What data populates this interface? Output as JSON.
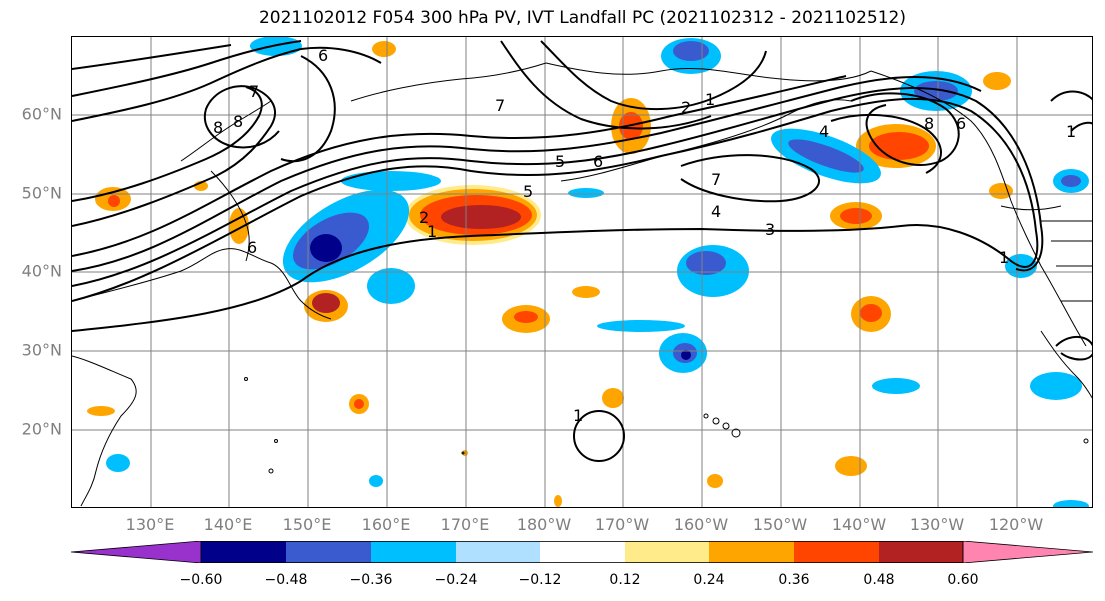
{
  "title": "2021102012 F054 300 hPa PV, IVT Landfall PC (2021102312 - 2021102512)",
  "map": {
    "lat_labels": [
      "60°N",
      "50°N",
      "40°N",
      "30°N",
      "20°N"
    ],
    "lon_labels": [
      "130°E",
      "140°E",
      "150°E",
      "160°E",
      "170°E",
      "180°W",
      "170°W",
      "160°W",
      "150°W",
      "140°W",
      "130°W",
      "120°W"
    ],
    "contour_labels": [
      "6",
      "7",
      "8",
      "8",
      "6",
      "2",
      "1",
      "1",
      "2",
      "5",
      "5",
      "6",
      "7",
      "4",
      "3",
      "4",
      "8",
      "6",
      "1",
      "1",
      "1",
      "7"
    ],
    "shaded_field_colors": {
      "neg_060": "#9932cc",
      "neg_048": "#00008b",
      "neg_036": "#3a5bd0",
      "neg_024": "#00bfff",
      "neg_012": "#b0e0ff",
      "neutral": "#ffffff",
      "pos_012": "#ffeb8a",
      "pos_024": "#ffa500",
      "pos_036": "#ff4500",
      "pos_048": "#b22222",
      "pos_060": "#ff85b0"
    },
    "contour_color": "#000000",
    "grid_color": "#808080",
    "coast_color": "#000000"
  },
  "colorbar": {
    "colors": [
      "#9932cc",
      "#00008b",
      "#3a5bd0",
      "#00bfff",
      "#b0e0ff",
      "#ffffff",
      "#ffeb8a",
      "#ffa500",
      "#ff4500",
      "#b22222",
      "#ff85b0"
    ],
    "ticks": [
      "−0.60",
      "−0.48",
      "−0.36",
      "−0.24",
      "−0.12",
      "0.12",
      "0.24",
      "0.36",
      "0.48",
      "0.60"
    ]
  }
}
